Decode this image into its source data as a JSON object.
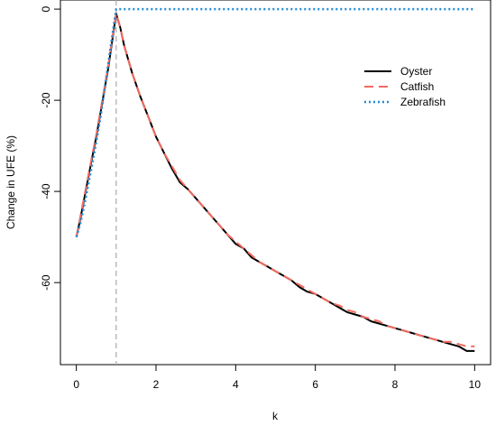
{
  "chart_data": {
    "type": "line",
    "title": "",
    "xlabel": "k",
    "ylabel": "Change in UFE (%)",
    "xlim": [
      -0.4,
      10.4
    ],
    "ylim": [
      -78,
      2
    ],
    "x_ticks": [
      0,
      2,
      4,
      6,
      8,
      10
    ],
    "x_tick_labels": [
      "0",
      "2",
      "4",
      "6",
      "8",
      "10"
    ],
    "y_ticks": [
      0,
      -20,
      -40,
      -60
    ],
    "y_tick_labels": [
      "0",
      "-20",
      "-40",
      "-60"
    ],
    "grid": false,
    "legend_position": "top-right",
    "vline": {
      "x": 1,
      "color": "#aaaaaa",
      "dash": "dashed"
    },
    "series": [
      {
        "name": "Oyster",
        "color": "#000000",
        "dash": "solid",
        "x": [
          0,
          0.1,
          0.2,
          0.3,
          0.4,
          0.5,
          0.6,
          0.7,
          0.8,
          0.9,
          1.0,
          1.1,
          1.2,
          1.3,
          1.4,
          1.5,
          1.6,
          1.8,
          2.0,
          2.2,
          2.4,
          2.6,
          2.8,
          3.0,
          3.2,
          3.4,
          3.6,
          3.8,
          4.0,
          4.2,
          4.4,
          4.6,
          4.8,
          5.0,
          5.2,
          5.4,
          5.6,
          5.8,
          6.0,
          6.2,
          6.4,
          6.6,
          6.8,
          7.0,
          7.2,
          7.4,
          7.6,
          7.8,
          8.0,
          8.2,
          8.4,
          8.6,
          8.8,
          9.0,
          9.2,
          9.4,
          9.6,
          9.8,
          10.0
        ],
        "y": [
          -50,
          -46,
          -41.5,
          -37,
          -32.5,
          -28,
          -23,
          -18,
          -13,
          -7,
          -1,
          -4,
          -8,
          -11,
          -14,
          -16.5,
          -19,
          -23.5,
          -28,
          -31.5,
          -35,
          -38,
          -39.5,
          -41.5,
          -43.5,
          -45.5,
          -47.5,
          -49.5,
          -51.5,
          -52.5,
          -54.5,
          -55.5,
          -56.5,
          -57.5,
          -58.5,
          -59.5,
          -61,
          -62,
          -62.5,
          -63.5,
          -64.5,
          -65.5,
          -66.5,
          -67,
          -67.5,
          -68.5,
          -69,
          -69.5,
          -70,
          -70.5,
          -71,
          -71.5,
          -72,
          -72.5,
          -73,
          -73.5,
          -74,
          -75,
          -75
        ]
      },
      {
        "name": "Catfish",
        "color": "#f46a5e",
        "dash": "dashed",
        "x": [
          0,
          0.1,
          0.2,
          0.3,
          0.4,
          0.5,
          0.6,
          0.7,
          0.8,
          0.9,
          1.0,
          1.1,
          1.2,
          1.3,
          1.4,
          1.5,
          1.6,
          1.8,
          2.0,
          2.2,
          2.4,
          2.6,
          2.8,
          3.0,
          3.2,
          3.4,
          3.6,
          3.8,
          4.0,
          4.2,
          4.4,
          4.6,
          4.8,
          5.0,
          5.2,
          5.4,
          5.6,
          5.8,
          6.0,
          6.2,
          6.4,
          6.6,
          6.8,
          7.0,
          7.2,
          7.4,
          7.6,
          7.8,
          8.0,
          8.2,
          8.4,
          8.6,
          8.8,
          9.0,
          9.2,
          9.4,
          9.6,
          9.8,
          10.0
        ],
        "y": [
          -50,
          -45.5,
          -41,
          -36.5,
          -32,
          -27.5,
          -22.5,
          -17.5,
          -12.5,
          -6.5,
          -1,
          -4,
          -8,
          -11,
          -14,
          -16.5,
          -19,
          -23.5,
          -28,
          -31.5,
          -34.5,
          -37.5,
          -39.5,
          -41.5,
          -43.5,
          -45.5,
          -47.5,
          -49.5,
          -51,
          -52.5,
          -54,
          -55.5,
          -56.5,
          -57.5,
          -58.5,
          -59.5,
          -60.5,
          -61.5,
          -62.5,
          -63.5,
          -64.5,
          -65,
          -66,
          -66.5,
          -67.5,
          -68,
          -68.5,
          -69.5,
          -70,
          -70.5,
          -71,
          -71.5,
          -72,
          -72.5,
          -73,
          -73,
          -73.5,
          -74,
          -74
        ]
      },
      {
        "name": "Zebrafish",
        "color": "#1f8ad6",
        "dash": "dotted",
        "x": [
          0,
          0.1,
          0.2,
          0.3,
          0.4,
          0.5,
          0.6,
          0.7,
          0.8,
          0.9,
          1.0,
          1.1,
          2.0,
          3.0,
          4.0,
          5.0,
          6.0,
          7.0,
          8.0,
          9.0,
          10.0
        ],
        "y": [
          -50,
          -47,
          -43,
          -38.5,
          -34,
          -29,
          -24,
          -18,
          -12,
          -6,
          0,
          0,
          0,
          0,
          0,
          0,
          0,
          0,
          0,
          0,
          0
        ]
      }
    ]
  }
}
